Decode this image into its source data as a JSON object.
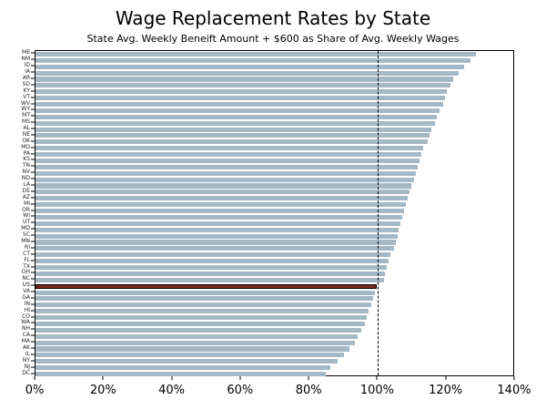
{
  "title": "Wage Replacement Rates by State",
  "subtitle": "State Avg. Weekly Beneift Amount + $600 as Share of Avg. Weekly Wages",
  "chart_data": {
    "type": "bar",
    "orientation": "horizontal",
    "title": "Wage Replacement Rates by State",
    "subtitle": "State Avg. Weekly Beneift Amount + $600 as Share of Avg. Weekly Wages",
    "xlabel": "",
    "ylabel": "",
    "xlim": [
      0,
      140
    ],
    "x_tick_values": [
      0,
      20,
      40,
      60,
      80,
      100,
      120,
      140
    ],
    "x_tick_labels": [
      "0%",
      "20%",
      "40%",
      "60%",
      "80%",
      "100%",
      "120%",
      "140%"
    ],
    "reference_line_x": 100,
    "grid": false,
    "bar_color": "#a4b8c6",
    "highlight_category": "US",
    "highlight_color": "#79281a",
    "categories": [
      "ME",
      "NM",
      "ID",
      "IA",
      "AR",
      "SD",
      "KY",
      "VT",
      "WV",
      "WY",
      "MT",
      "MS",
      "AL",
      "NE",
      "OK",
      "MO",
      "PA",
      "KS",
      "TN",
      "NV",
      "ND",
      "LA",
      "DE",
      "AZ",
      "MI",
      "OR",
      "WI",
      "UT",
      "MD",
      "SC",
      "MN",
      "RI",
      "CT",
      "FL",
      "TX",
      "OH",
      "NC",
      "US",
      "VA",
      "GA",
      "IN",
      "HI",
      "CO",
      "WA",
      "NH",
      "CA",
      "MA",
      "AK",
      "IL",
      "NY",
      "NJ",
      "DC"
    ],
    "values": [
      129,
      127.5,
      125.5,
      124,
      122.5,
      121.5,
      120.5,
      120,
      119.5,
      118.5,
      117.5,
      117,
      116,
      115.5,
      115,
      113.5,
      113,
      112.5,
      112,
      111.5,
      111,
      110,
      109.5,
      109,
      108.5,
      108,
      107.5,
      107,
      106.5,
      106,
      105.5,
      105,
      104,
      103.5,
      103,
      102.5,
      102,
      100,
      99.5,
      99,
      98.5,
      97.5,
      97,
      96.5,
      95.5,
      94.5,
      93.5,
      92,
      90.5,
      88.5,
      86.5,
      85
    ]
  }
}
